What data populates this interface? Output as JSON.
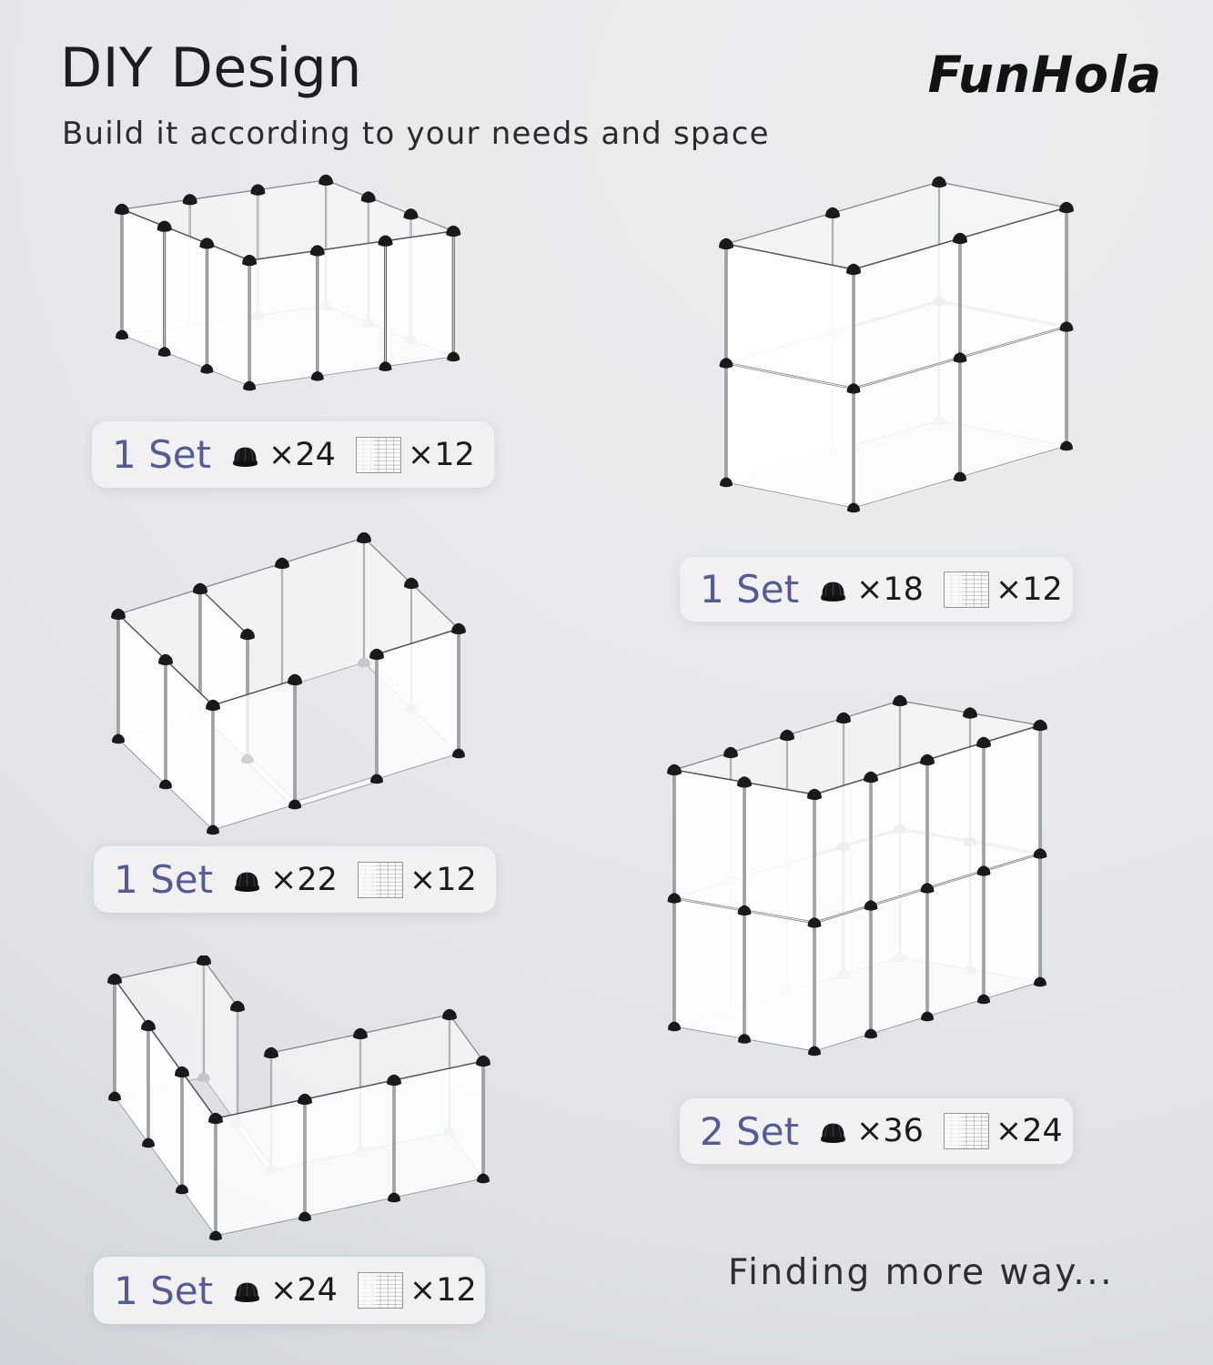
{
  "page": {
    "title": "DIY Design",
    "brand": "FunHola",
    "subtitle": "Build it according to your needs and space",
    "footer_note": "Finding more way..."
  },
  "colors": {
    "accent_set_label": "#545c92",
    "badge_background": "#f1f1f4",
    "background_light": "#ebecee",
    "background_dark": "#c2c5cc",
    "ink": "#1d1d1f"
  },
  "icons": {
    "connector": "dome-connector-icon",
    "panel": "grid-panel-icon"
  },
  "configs": [
    {
      "set_label": "1 Set",
      "connector_count": "×24",
      "panel_count": "×12",
      "illustration": "single-level-rectangular-pen"
    },
    {
      "set_label": "1 Set",
      "connector_count": "×18",
      "panel_count": "×12",
      "illustration": "two-level-tall-enclosure"
    },
    {
      "set_label": "1 Set",
      "connector_count": "×22",
      "panel_count": "×12",
      "illustration": "divided-pen-with-door"
    },
    {
      "set_label": "2 Set",
      "connector_count": "×36",
      "panel_count": "×24",
      "illustration": "large-two-level-enclosure"
    },
    {
      "set_label": "1 Set",
      "connector_count": "×24",
      "panel_count": "×12",
      "illustration": "l-shaped-pen"
    }
  ]
}
